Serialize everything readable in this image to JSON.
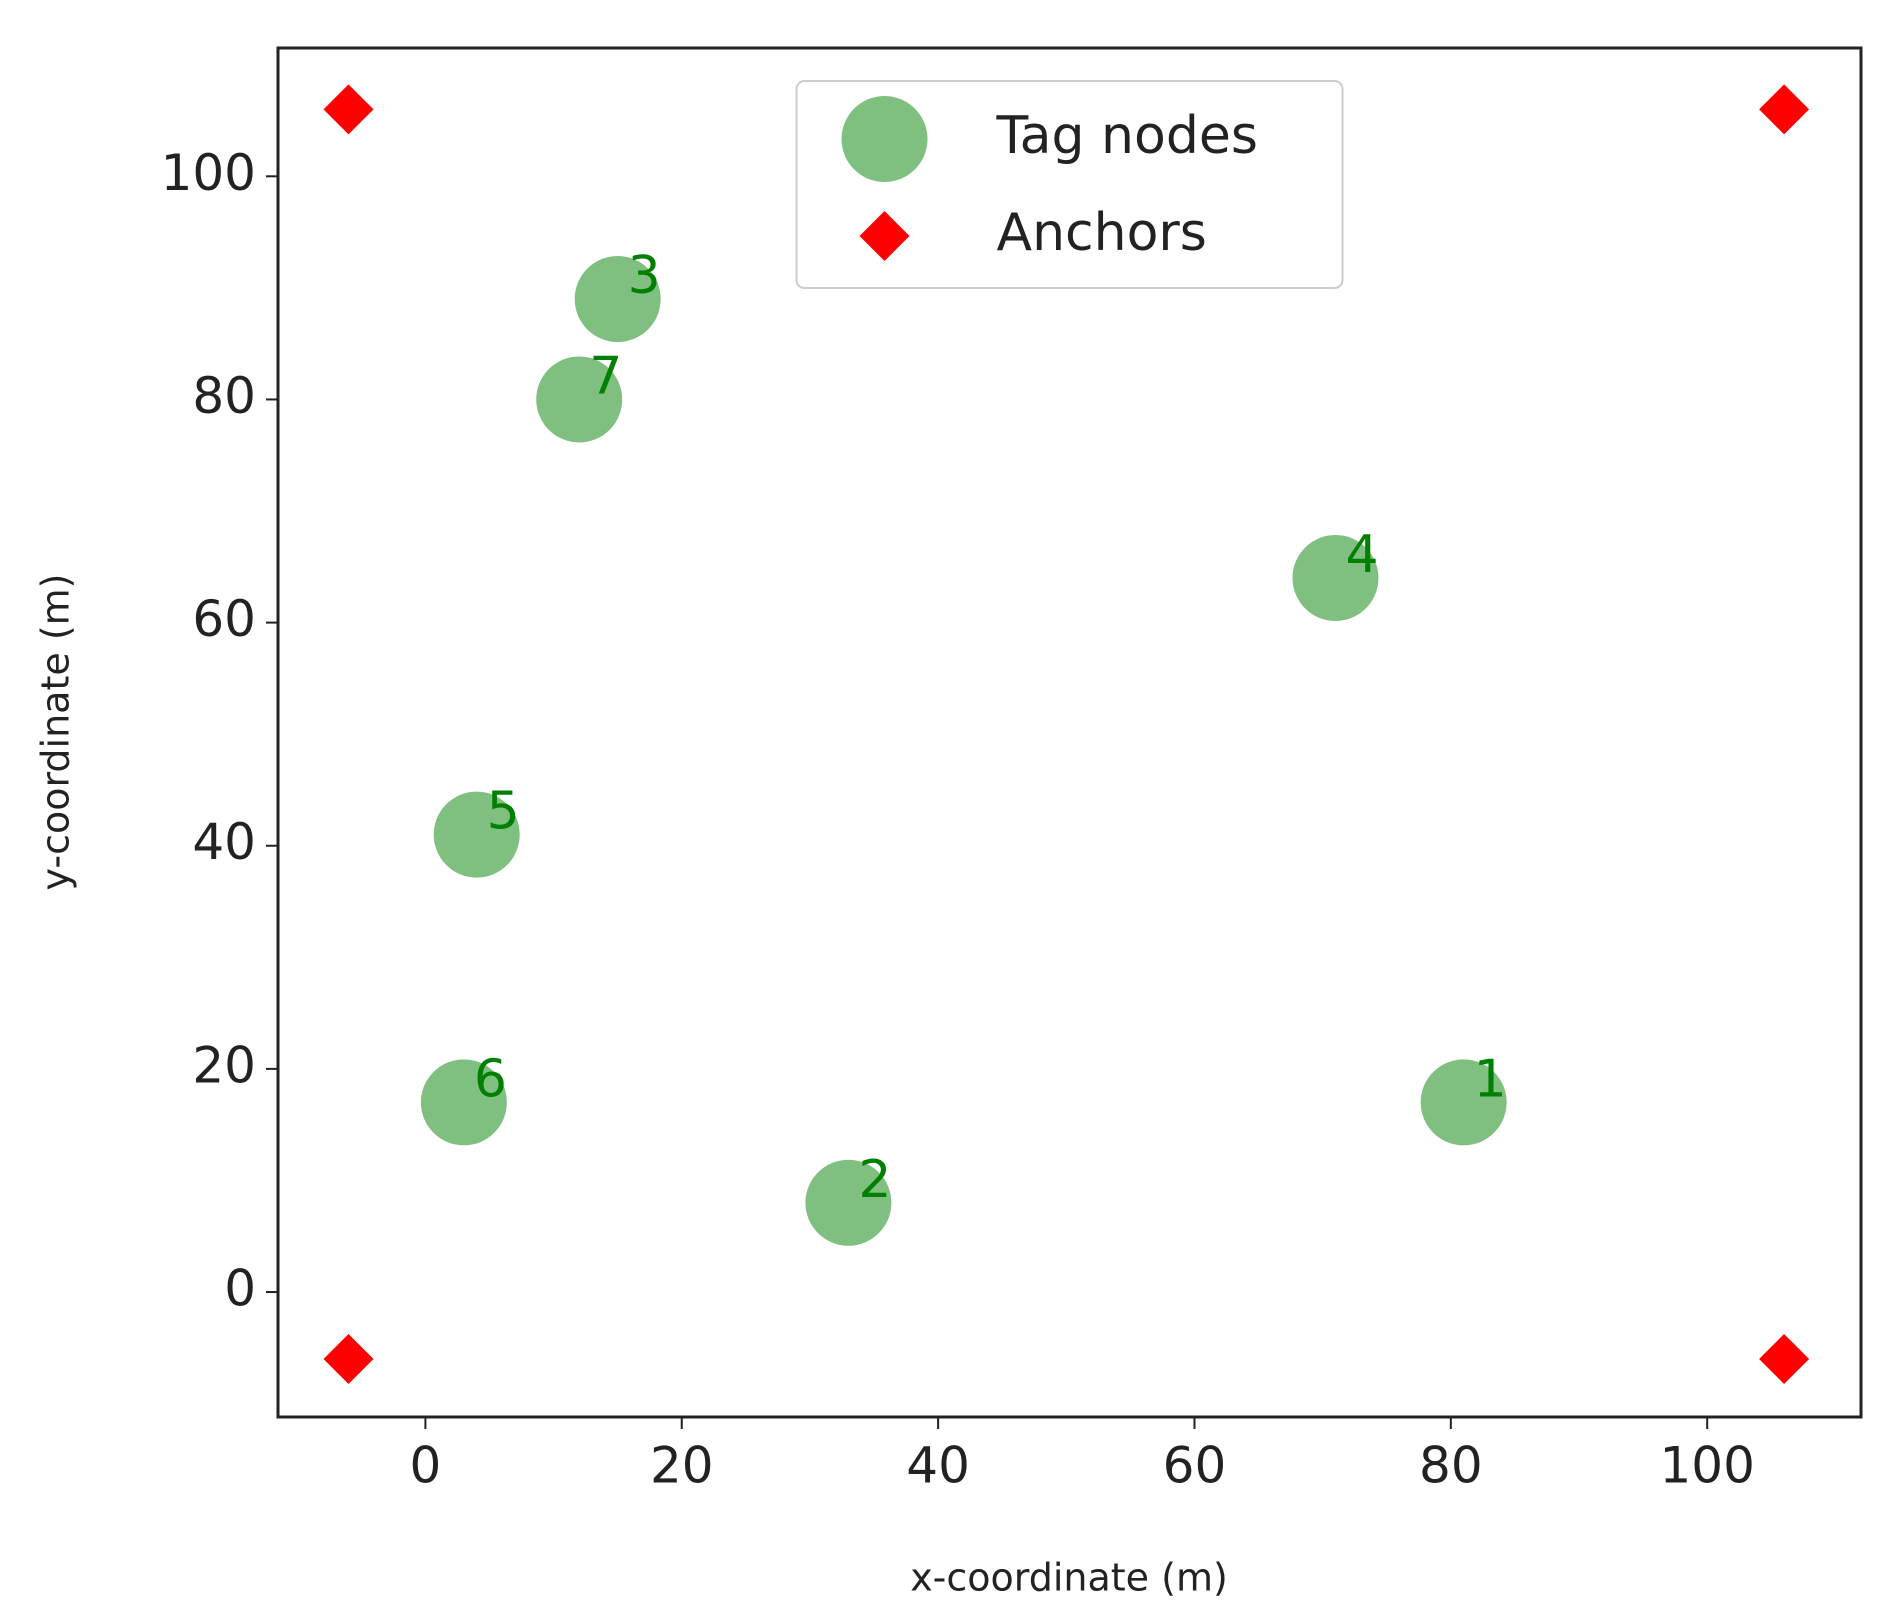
{
  "chart_data": {
    "type": "scatter",
    "xlabel": "x-coordinate (m)",
    "ylabel": "y-coordinate (m)",
    "xlim": [
      -11.5,
      112
    ],
    "ylim": [
      -11.2,
      111.5
    ],
    "xticks": [
      0,
      20,
      40,
      60,
      80,
      100
    ],
    "yticks": [
      0,
      20,
      40,
      60,
      80,
      100
    ],
    "legend": "upper center",
    "series": [
      {
        "name": "Tag nodes",
        "color": "#008000",
        "alpha": 0.5,
        "marker": "circle",
        "x": [
          81,
          33,
          15,
          71,
          4,
          3,
          12
        ],
        "y": [
          17,
          8,
          89,
          64,
          41,
          17,
          80
        ],
        "labels": [
          "1",
          "2",
          "3",
          "4",
          "5",
          "6",
          "7"
        ]
      },
      {
        "name": "Anchors",
        "color": "#ff0000",
        "alpha": 1,
        "marker": "diamond",
        "x": [
          -6,
          106,
          -6,
          106
        ],
        "y": [
          -6,
          -6,
          106,
          106
        ]
      }
    ]
  }
}
